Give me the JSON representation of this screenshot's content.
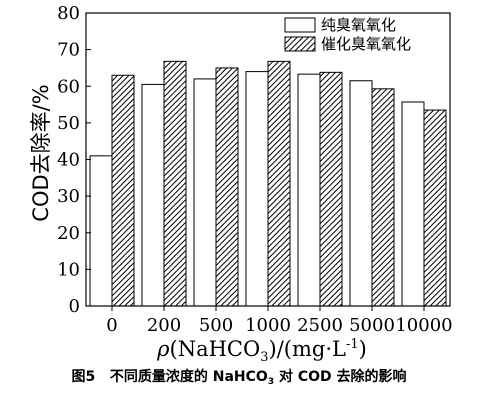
{
  "chart_data": {
    "type": "bar",
    "ylabel": "COD去除率/%",
    "xlabel_parts": {
      "rho": "ρ",
      "pre": "(NaHCO",
      "sub": "3",
      "mid": ")/(mg·L",
      "sup": "-1",
      "post": ")"
    },
    "ylim": [
      0,
      80
    ],
    "yticks": [
      0,
      10,
      20,
      30,
      40,
      50,
      60,
      70,
      80
    ],
    "categories": [
      "0",
      "200",
      "500",
      "1000",
      "2500",
      "5000",
      "10000"
    ],
    "series": [
      {
        "name": "纯臭氧氧化",
        "values": [
          41,
          60.5,
          62,
          64,
          63.3,
          61.5,
          55.7
        ],
        "fill": "white"
      },
      {
        "name": "催化臭氧氧化",
        "values": [
          63,
          66.8,
          65,
          66.8,
          63.8,
          59.3,
          53.5
        ],
        "fill": "hatch"
      }
    ],
    "legend_position": "top-right",
    "grid": false
  },
  "caption": {
    "number": "图5",
    "pre": "不同质量浓度的 NaHCO",
    "sub": "3",
    "post": " 对 COD 去除的影响"
  }
}
